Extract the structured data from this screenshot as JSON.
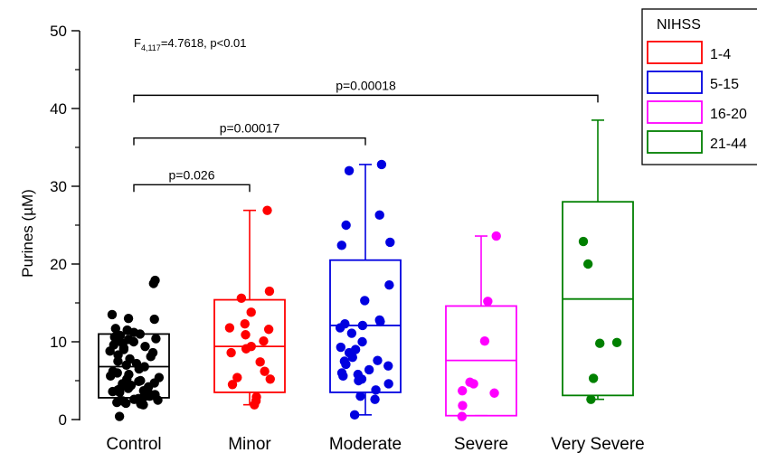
{
  "chart_data": {
    "type": "box",
    "ylabel": "Purines (µM)",
    "ylim": [
      0,
      50
    ],
    "yticks": [
      "0",
      "10",
      "20",
      "30",
      "40",
      "50"
    ],
    "categories": [
      "Control",
      "Minor",
      "Moderate",
      "Severe",
      "Very Severe"
    ],
    "stat_text": {
      "pre": "F",
      "sub": "4,117",
      "post": "=4.7618, p<0.01"
    },
    "legend": {
      "title": "NIHSS",
      "placement": "top-right",
      "entries": [
        "1-4",
        "5-15",
        "16-20",
        "21-44"
      ]
    },
    "colors": [
      "#000000",
      "#ff0000",
      "#0000e0",
      "#ff00ff",
      "#008000"
    ],
    "groups": [
      {
        "name": "Control",
        "q1": 2.8,
        "median": 6.8,
        "q3": 11.0,
        "whisker_low": null,
        "whisker_high": null,
        "points": [
          17.5,
          17.9,
          13.5,
          13.0,
          12.9,
          11.7,
          11.5,
          11.2,
          11.0,
          10.8,
          10.6,
          10.4,
          10.3,
          10.2,
          10.0,
          9.8,
          9.6,
          9.4,
          9.2,
          9.0,
          8.8,
          8.6,
          8.3,
          8.1,
          7.8,
          7.5,
          7.2,
          7.0,
          6.8,
          6.5,
          6.2,
          6.0,
          5.8,
          5.6,
          5.4,
          5.2,
          5.0,
          4.9,
          4.7,
          4.6,
          4.5,
          4.4,
          4.3,
          4.2,
          4.1,
          4.0,
          3.9,
          3.8,
          3.7,
          3.6,
          3.5,
          3.4,
          3.3,
          3.2,
          3.1,
          3.0,
          2.9,
          2.7,
          2.6,
          2.5,
          2.4,
          2.3,
          2.2,
          2.1,
          2.0,
          1.9,
          0.4
        ]
      },
      {
        "name": "Minor",
        "q1": 3.5,
        "median": 9.4,
        "q3": 15.4,
        "whisker_low": 1.9,
        "whisker_high": 26.9,
        "points": [
          26.9,
          16.5,
          15.6,
          13.8,
          12.3,
          11.8,
          11.6,
          10.9,
          10.1,
          9.4,
          9.1,
          8.6,
          7.4,
          6.2,
          5.4,
          5.2,
          4.5,
          2.9,
          2.4,
          1.9
        ]
      },
      {
        "name": "Moderate",
        "q1": 3.5,
        "median": 12.1,
        "q3": 20.5,
        "whisker_low": 0.6,
        "whisker_high": 32.8,
        "points": [
          32.8,
          32.0,
          26.3,
          25.0,
          22.8,
          22.4,
          17.3,
          15.3,
          12.8,
          12.6,
          12.3,
          12.1,
          11.8,
          11.1,
          10.0,
          9.3,
          9.0,
          8.6,
          8.0,
          7.6,
          7.5,
          7.1,
          6.9,
          6.4,
          6.0,
          5.8,
          5.6,
          5.2,
          5.0,
          4.6,
          3.8,
          3.0,
          2.6,
          0.6
        ]
      },
      {
        "name": "Severe",
        "q1": 0.5,
        "median": 7.6,
        "q3": 14.6,
        "whisker_low": 0.5,
        "whisker_high": 23.6,
        "points": [
          23.6,
          15.2,
          10.1,
          4.8,
          4.6,
          3.7,
          3.4,
          1.8,
          0.4
        ]
      },
      {
        "name": "Very Severe",
        "q1": 3.1,
        "median": 15.5,
        "q3": 28.0,
        "whisker_low": 2.6,
        "whisker_high": 38.5,
        "points": [
          22.9,
          20.0,
          9.9,
          9.8,
          5.3,
          2.6
        ]
      }
    ],
    "comparisons": [
      {
        "from": "Control",
        "to": "Minor",
        "label": "p=0.026",
        "y": 30.2
      },
      {
        "from": "Control",
        "to": "Moderate",
        "label": "p=0.00017",
        "y": 36.2
      },
      {
        "from": "Control",
        "to": "Very Severe",
        "label": "p=0.00018",
        "y": 41.7
      }
    ]
  }
}
